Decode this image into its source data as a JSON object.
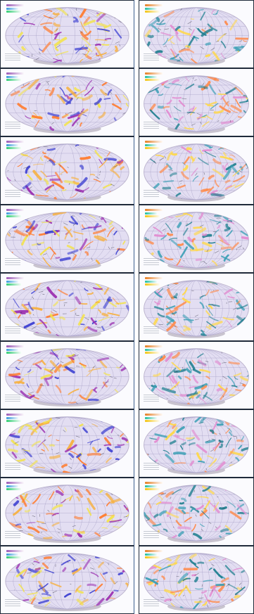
{
  "gallery": {
    "columns": 2,
    "rows": 9,
    "items": [
      {
        "map": "left-sky-map-1"
      },
      {
        "map": "right-sky-map-1"
      },
      {
        "map": "left-sky-map-2"
      },
      {
        "map": "right-sky-map-2"
      },
      {
        "map": "left-sky-map-3"
      },
      {
        "map": "right-sky-map-3"
      },
      {
        "map": "left-sky-map-4"
      },
      {
        "map": "right-sky-map-4"
      },
      {
        "map": "left-sky-map-5"
      },
      {
        "map": "right-sky-map-5"
      },
      {
        "map": "left-sky-map-6"
      },
      {
        "map": "right-sky-map-6"
      },
      {
        "map": "left-sky-map-7"
      },
      {
        "map": "right-sky-map-7"
      },
      {
        "map": "left-sky-map-8"
      },
      {
        "map": "right-sky-map-8"
      },
      {
        "map": "left-sky-map-9"
      },
      {
        "map": "right-sky-map-9"
      }
    ]
  },
  "colors": {
    "page_bg": "#ffffff",
    "frame": "#1f2a3a",
    "map_bg": "#e3def2",
    "map_rim": "#bdb5cf",
    "left_palette": [
      "#f7b03f",
      "#ff7b2e",
      "#3c3fd1",
      "#9a2db0",
      "#f3e34a"
    ],
    "right_palette": [
      "#ffd84a",
      "#ff8a4a",
      "#1f7f8f",
      "#3a9fb5",
      "#e28ad0"
    ]
  }
}
